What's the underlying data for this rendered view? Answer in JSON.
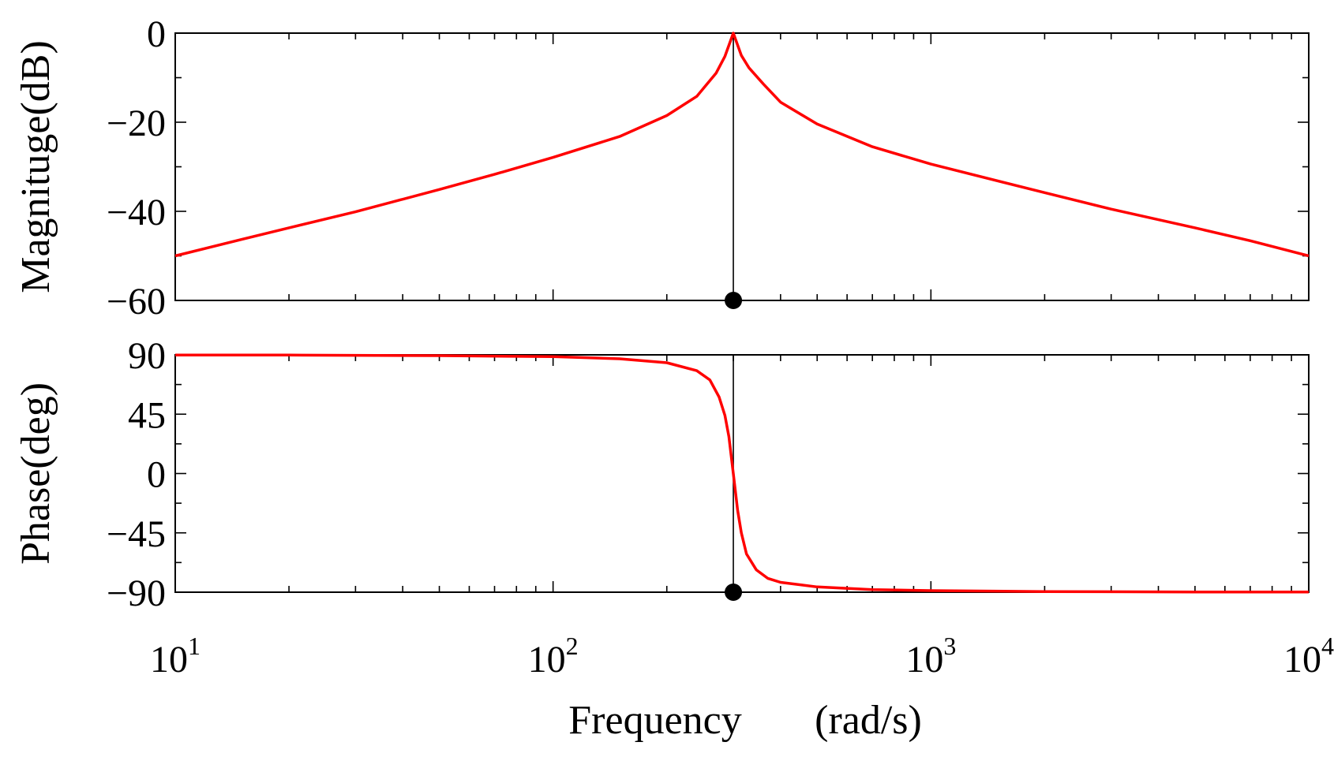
{
  "chart_data": [
    {
      "type": "line",
      "panel": "magnitude",
      "ylabel": "Magnituge(dB)",
      "xscale": "log",
      "xlim": [
        10,
        10000
      ],
      "ylim": [
        -60,
        0
      ],
      "yticks": [
        0,
        -20,
        -40,
        -60
      ],
      "yticklabels": [
        "0",
        "−20",
        "−40",
        "−60"
      ],
      "grid": false,
      "marker": {
        "x": 300,
        "y": -60
      },
      "series": [
        {
          "color": "#ff0000",
          "x": [
            10,
            15,
            20,
            30,
            50,
            70,
            100,
            150,
            200,
            240,
            270,
            285,
            300,
            315,
            330,
            360,
            400,
            500,
            700,
            1000,
            2000,
            3000,
            5000,
            7000,
            10000
          ],
          "y": [
            -50,
            -46.3,
            -43.7,
            -40.1,
            -35.1,
            -31.7,
            -27.9,
            -23.2,
            -18.5,
            -14.2,
            -9.0,
            -5.2,
            0,
            -5.0,
            -7.8,
            -11.4,
            -15.5,
            -20.4,
            -25.5,
            -29.4,
            -35.8,
            -39.5,
            -43.7,
            -46.6,
            -50
          ]
        }
      ]
    },
    {
      "type": "line",
      "panel": "phase",
      "ylabel": "Phase(deg)",
      "xlabel_main": "Frequency",
      "xlabel_unit": "(rad/s)",
      "xscale": "log",
      "xlim": [
        10,
        10000
      ],
      "ylim": [
        -90,
        90
      ],
      "yticks": [
        90,
        45,
        0,
        -45,
        -90
      ],
      "yticklabels": [
        "90",
        "45",
        "0",
        "−45",
        "−90"
      ],
      "xticks": [
        10,
        100,
        1000,
        10000
      ],
      "xtick_base": "10",
      "xtick_exponents": [
        "1",
        "2",
        "3",
        "4"
      ],
      "grid": false,
      "marker": {
        "x": 300,
        "y": -90
      },
      "series": [
        {
          "color": "#ff0000",
          "x": [
            10,
            20,
            50,
            100,
            150,
            200,
            240,
            260,
            275,
            285,
            292,
            300,
            308,
            315,
            325,
            345,
            370,
            400,
            500,
            700,
            1000,
            2000,
            5000,
            10000
          ],
          "y": [
            89.9,
            89.8,
            89.4,
            88.6,
            87.0,
            84.0,
            78.0,
            71.0,
            58.0,
            44.0,
            28.0,
            0,
            -28.0,
            -45.0,
            -61.0,
            -73.0,
            -79.5,
            -82.5,
            -86.0,
            -88.0,
            -88.8,
            -89.5,
            -89.8,
            -89.9
          ]
        }
      ]
    }
  ]
}
